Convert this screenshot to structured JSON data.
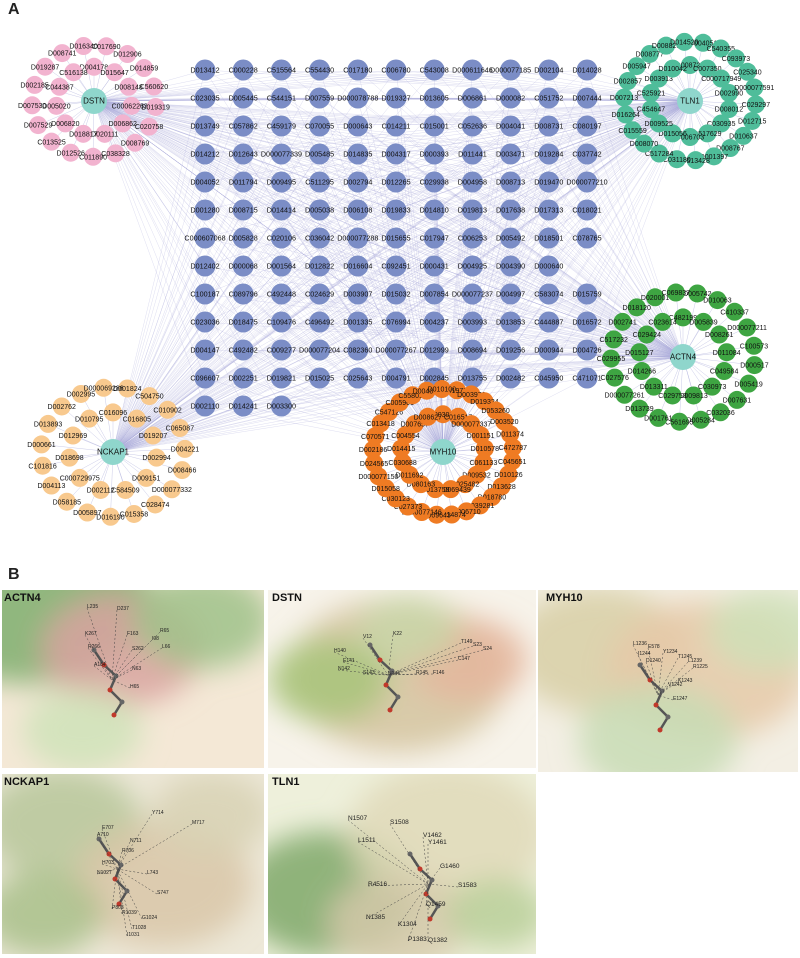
{
  "panels": {
    "a": "A",
    "b": "B"
  },
  "colors": {
    "center": "#8fd6cc",
    "shared": "#7b8dc6",
    "dstn": "#f2b3cf",
    "tln1": "#4fbd9a",
    "nckap1": "#f8c98e",
    "myh10": "#ef7b23",
    "actn4": "#3ea542",
    "edge": "#a7a8d8"
  },
  "hubs": [
    {
      "id": "dstn",
      "label": "DSTN"
    },
    {
      "id": "tln1",
      "label": "TLN1"
    },
    {
      "id": "nckap1",
      "label": "NCKAP1"
    },
    {
      "id": "myh10",
      "label": "MYH10"
    },
    {
      "id": "actn4",
      "label": "ACTN4"
    }
  ],
  "shared_rows": [
    [
      "D013412",
      "C000228",
      "C515564",
      "C554430",
      "C017180",
      "C006780",
      "C543008",
      "D000611646",
      "D000077185",
      "D002104",
      "D014028"
    ],
    [
      "C023035",
      "D005445",
      "C544151",
      "D007559",
      "D000078788",
      "D019327",
      "D013605",
      "D006861",
      "D000082",
      "C051752",
      "D007444"
    ],
    [
      "D013749",
      "C057862",
      "C459179",
      "C070055",
      "D000643",
      "C014211",
      "C015001",
      "C052636",
      "D004041",
      "D008731",
      "C080197"
    ],
    [
      "D014212",
      "D012643",
      "D000077339",
      "D005485",
      "D014835",
      "D004317",
      "D000393",
      "D011441",
      "D003471",
      "D019284",
      "C037742"
    ],
    [
      "D004052",
      "D011794",
      "D009495",
      "C511295",
      "D002794",
      "D012265",
      "C029938",
      "D004958",
      "D008713",
      "D019470",
      "D000077210"
    ],
    [
      "D001280",
      "D008715",
      "D014414",
      "D005038",
      "D006108",
      "D019833",
      "D014810",
      "D019813",
      "D017638",
      "D017313",
      "C018021"
    ],
    [
      "C000607068",
      "D005828",
      "C020106",
      "C036042",
      "D000077288",
      "D015655",
      "C017947",
      "C006253",
      "D005492",
      "D018501",
      "C078765"
    ],
    [
      "D012402",
      "D000068",
      "D001564",
      "D012822",
      "D016604",
      "C092451",
      "D000431",
      "D004925",
      "D004390",
      "D000640"
    ],
    [
      "C100187",
      "C089796",
      "C492448",
      "C024629",
      "D003907",
      "D015032",
      "D007854",
      "D000077237",
      "D004997",
      "C583074",
      "D015759"
    ],
    [
      "C023036",
      "D018475",
      "C109476",
      "C496492",
      "D001335",
      "C076994",
      "D004237",
      "D003993",
      "D013853",
      "C444887",
      "D016572"
    ],
    [
      "D004147",
      "C492482",
      "C009277",
      "D000077204",
      "C082360",
      "D000077267",
      "D012999",
      "D008694",
      "D019256",
      "D000944",
      "D004726"
    ],
    [
      "C096607",
      "D002251",
      "D019821",
      "D015025",
      "C025643",
      "D004791",
      "D002845",
      "D013755",
      "D002482",
      "C045950",
      "C471071"
    ],
    [
      "D002110",
      "D014241",
      "D003300"
    ]
  ],
  "groups": {
    "dstn": [
      "D004178",
      "D015647",
      "D008148",
      "C000622638",
      "D006862",
      "D020111",
      "D018817",
      "D006820",
      "D005020",
      "C044387",
      "C516138",
      "C017690",
      "D012906",
      "D014859",
      "C560620",
      "D019319",
      "C020758",
      "D008769",
      "C038328",
      "C011890",
      "D012526",
      "C013525",
      "D007529",
      "D007530",
      "D002185",
      "D019287",
      "D008741",
      "D016340"
    ],
    "tln1": [
      "D008727",
      "C007350",
      "C000717949",
      "D002990",
      "D008012",
      "C030935",
      "C517629",
      "C006703",
      "D015056",
      "D009525",
      "C454647",
      "C525921",
      "D003913",
      "D010042",
      "D004051",
      "C540355",
      "C093973",
      "C025340",
      "D000077591",
      "C029297",
      "D012715",
      "D010637",
      "D008767",
      "D001397",
      "C513428",
      "C031180",
      "C517284",
      "D008070",
      "C015559",
      "D016264",
      "D007213",
      "D002857",
      "D005947",
      "D008777",
      "D008825",
      "D014520"
    ],
    "nckap1": [
      "C016096",
      "C016805",
      "D019207",
      "D002994",
      "D009151",
      "C584509",
      "D002112",
      "C000729975",
      "D018698",
      "D012969",
      "D010795",
      "D001824",
      "C504750",
      "C010902",
      "C065087",
      "D004221",
      "D008466",
      "D000077332",
      "C028474",
      "C015358",
      "D016190",
      "D005897",
      "D058185",
      "D004113",
      "C101816",
      "D000661",
      "D013893",
      "D002762",
      "D002995",
      "D000069286"
    ],
    "myh10": [
      "D003024",
      "C016517",
      "D000077337",
      "D001151",
      "D010578",
      "C061133",
      "D009532",
      "C025482",
      "D000069439",
      "D013759",
      "D080163",
      "D011692",
      "C030688",
      "D014415",
      "C004554",
      "D007657",
      "D008627",
      "D019772",
      "D003976",
      "D019324",
      "D053260",
      "D003520",
      "D011374",
      "C472787",
      "C045651",
      "D010126",
      "D013628",
      "D018780",
      "C039281",
      "D006710",
      "D014874",
      "D009643",
      "D000077146",
      "C027373",
      "C030123",
      "D015058",
      "D000077150",
      "D024565",
      "D002186",
      "C070571",
      "C013418",
      "C547126",
      "C005961",
      "C558013",
      "D004054",
      "D010100"
    ],
    "actn4": [
      "C482199",
      "D005839",
      "D008261",
      "D011084",
      "C049584",
      "C030973",
      "D009813",
      "C029753",
      "D013311",
      "D014266",
      "D015127",
      "C029424",
      "C023614",
      "D005742",
      "D010063",
      "C410337",
      "D000077211",
      "C100573",
      "D000517",
      "D005419",
      "D007631",
      "C032036",
      "D005284",
      "C561695",
      "D001761",
      "D013739",
      "D000077261",
      "C027576",
      "C029955",
      "C517232",
      "D002741",
      "D018120",
      "D020001",
      "C069837"
    ]
  },
  "docking": [
    {
      "id": "actn4",
      "title": "ACTN4"
    },
    {
      "id": "dstn",
      "title": "DSTN"
    },
    {
      "id": "myh10",
      "title": "MYH10"
    },
    {
      "id": "nckap1",
      "title": "NCKAP1"
    },
    {
      "id": "tln1",
      "title": "TLN1"
    }
  ],
  "residues": {
    "actn4": [
      "L235",
      "D237",
      "K267",
      "R266",
      "A154",
      "F163",
      "S262",
      "I98",
      "R65",
      "L66",
      "N63",
      "H65"
    ],
    "dstn": [
      "V12",
      "H140",
      "E141",
      "N142",
      "S143",
      "N144",
      "R145",
      "F146",
      "C147",
      "T149",
      "S23",
      "S24",
      "K22"
    ],
    "myh10": [
      "L1236",
      "E578",
      "I1244",
      "Y1234",
      "D1240",
      "T1245",
      "L1239",
      "R1225",
      "K1243",
      "V1242",
      "E1247"
    ],
    "nckap1": [
      "Y714",
      "M717",
      "E707",
      "A710",
      "N711",
      "R706",
      "H703",
      "L743",
      "S747",
      "P808",
      "R1039",
      "G1024",
      "T1028",
      "N1027",
      "I1031"
    ],
    "tln1": [
      "N1507",
      "S1508",
      "L1511",
      "V1462",
      "Y1461",
      "G1460",
      "R4516",
      "S1583",
      "Q1459",
      "N1385",
      "K1304",
      "P1383",
      "Q1382"
    ]
  }
}
